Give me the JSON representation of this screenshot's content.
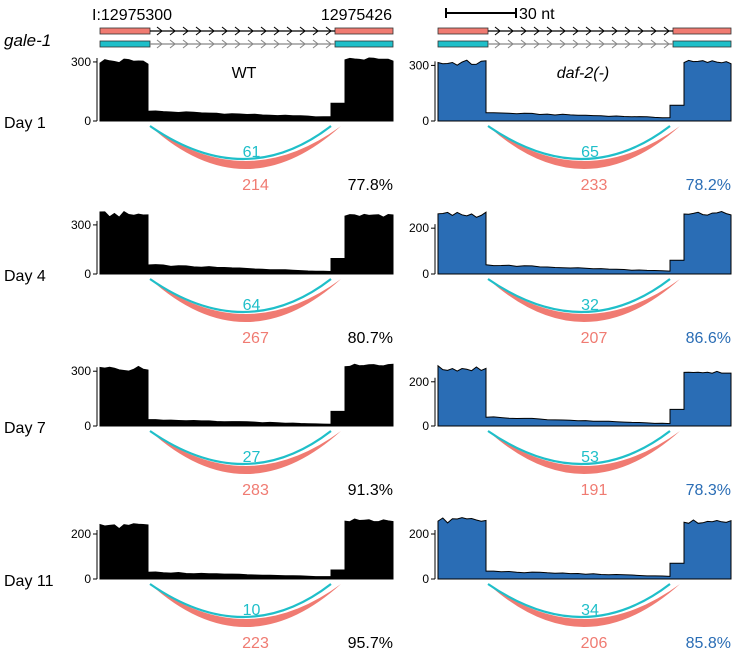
{
  "gene": "gale-1",
  "coord_start": "I:12975300",
  "coord_end": "12975426",
  "scale_label": "30 nt",
  "colors": {
    "wt": "#000000",
    "mutant": "#2a6db5",
    "junction_a": "#f07b72",
    "junction_b": "#1fbfc9",
    "ink": "#000000"
  },
  "chart_data": {
    "type": "area",
    "title": "",
    "xlabel": "",
    "ylabel": "",
    "conditions": [
      {
        "key": "wt",
        "label": "WT",
        "label_style": "normal"
      },
      {
        "key": "mutant",
        "label": "daf-2(-)",
        "label_style": "italic"
      }
    ],
    "timepoints": [
      "Day 1",
      "Day 4",
      "Day 7",
      "Day 11"
    ],
    "panels": [
      {
        "timepoint": "Day 1",
        "condition": "wt",
        "ylim": [
          0,
          320
        ],
        "yticks": [
          0,
          300
        ],
        "tick_labels": [
          "0",
          "300"
        ],
        "profile": {
          "exon_left_mean": 310,
          "intron_start": 50,
          "intron_end": 20,
          "intron_near_exon": 90,
          "exon_right_mean": 320
        },
        "junction_a": "214",
        "junction_b": "61",
        "percent": "77.8%"
      },
      {
        "timepoint": "Day 1",
        "condition": "mutant",
        "ylim": [
          0,
          340
        ],
        "yticks": [
          0,
          300
        ],
        "tick_labels": [
          "0",
          "300"
        ],
        "profile": {
          "exon_left_mean": 320,
          "intron_start": 45,
          "intron_end": 18,
          "intron_near_exon": 85,
          "exon_right_mean": 325
        },
        "junction_a": "233",
        "junction_b": "65",
        "percent": "78.2%"
      },
      {
        "timepoint": "Day 4",
        "condition": "wt",
        "ylim": [
          0,
          385
        ],
        "yticks": [
          0,
          300
        ],
        "tick_labels": [
          "0",
          "300"
        ],
        "profile": {
          "exon_left_mean": 370,
          "intron_start": 55,
          "intron_end": 15,
          "intron_near_exon": 95,
          "exon_right_mean": 365
        },
        "junction_a": "267",
        "junction_b": "64",
        "percent": "80.7%"
      },
      {
        "timepoint": "Day 4",
        "condition": "mutant",
        "ylim": [
          0,
          275
        ],
        "yticks": [
          0,
          200
        ],
        "tick_labels": [
          "0",
          "200"
        ],
        "profile": {
          "exon_left_mean": 265,
          "intron_start": 40,
          "intron_end": 12,
          "intron_near_exon": 60,
          "exon_right_mean": 270
        },
        "junction_a": "207",
        "junction_b": "32",
        "percent": "86.6%"
      },
      {
        "timepoint": "Day 7",
        "condition": "wt",
        "ylim": [
          0,
          345
        ],
        "yticks": [
          0,
          300
        ],
        "tick_labels": [
          "0",
          "300"
        ],
        "profile": {
          "exon_left_mean": 320,
          "intron_start": 35,
          "intron_end": 10,
          "intron_near_exon": 80,
          "exon_right_mean": 335
        },
        "junction_a": "283",
        "junction_b": "27",
        "percent": "91.3%"
      },
      {
        "timepoint": "Day 7",
        "condition": "mutant",
        "ylim": [
          0,
          285
        ],
        "yticks": [
          0,
          200
        ],
        "tick_labels": [
          "0",
          "200"
        ],
        "profile": {
          "exon_left_mean": 265,
          "intron_start": 40,
          "intron_end": 10,
          "intron_near_exon": 75,
          "exon_right_mean": 250
        },
        "junction_a": "191",
        "junction_b": "53",
        "percent": "78.3%"
      },
      {
        "timepoint": "Day 11",
        "condition": "wt",
        "ylim": [
          0,
          280
        ],
        "yticks": [
          0,
          200
        ],
        "tick_labels": [
          "0",
          "200"
        ],
        "profile": {
          "exon_left_mean": 240,
          "intron_start": 30,
          "intron_end": 10,
          "intron_near_exon": 40,
          "exon_right_mean": 265
        },
        "junction_a": "223",
        "junction_b": "10",
        "percent": "95.7%"
      },
      {
        "timepoint": "Day 11",
        "condition": "mutant",
        "ylim": [
          0,
          280
        ],
        "yticks": [
          0,
          200
        ],
        "tick_labels": [
          "0",
          "200"
        ],
        "profile": {
          "exon_left_mean": 265,
          "intron_start": 35,
          "intron_end": 12,
          "intron_near_exon": 70,
          "exon_right_mean": 260
        },
        "junction_a": "206",
        "junction_b": "34",
        "percent": "85.8%"
      }
    ]
  }
}
